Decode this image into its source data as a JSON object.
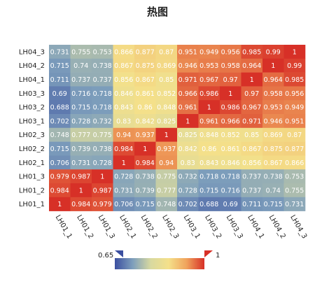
{
  "chart_data": {
    "type": "heatmap",
    "title": "热图",
    "rows": [
      "LH04_3",
      "LH04_2",
      "LH04_1",
      "LH03_3",
      "LH03_2",
      "LH03_1",
      "LH02_3",
      "LH02_2",
      "LH02_1",
      "LH01_3",
      "LH01_2",
      "LH01_1"
    ],
    "cols": [
      "LH01_1",
      "LH01_2",
      "LH01_3",
      "LH02_1",
      "LH02_2",
      "LH02_3",
      "LH03_1",
      "LH03_2",
      "LH03_3",
      "LH04_1",
      "LH04_2",
      "LH04_3"
    ],
    "values": [
      [
        0.731,
        0.755,
        0.753,
        0.866,
        0.877,
        0.87,
        0.951,
        0.949,
        0.956,
        0.985,
        0.99,
        1
      ],
      [
        0.715,
        0.74,
        0.738,
        0.867,
        0.875,
        0.869,
        0.946,
        0.953,
        0.958,
        0.964,
        1,
        0.99
      ],
      [
        0.711,
        0.737,
        0.737,
        0.856,
        0.867,
        0.85,
        0.971,
        0.967,
        0.97,
        1,
        0.964,
        0.985
      ],
      [
        0.69,
        0.716,
        0.718,
        0.846,
        0.861,
        0.852,
        0.966,
        0.986,
        1,
        0.97,
        0.958,
        0.956
      ],
      [
        0.688,
        0.715,
        0.718,
        0.843,
        0.86,
        0.848,
        0.961,
        1,
        0.986,
        0.967,
        0.953,
        0.949
      ],
      [
        0.702,
        0.728,
        0.732,
        0.83,
        0.842,
        0.825,
        1,
        0.961,
        0.966,
        0.971,
        0.946,
        0.951
      ],
      [
        0.748,
        0.777,
        0.775,
        0.94,
        0.937,
        1,
        0.825,
        0.848,
        0.852,
        0.85,
        0.869,
        0.87
      ],
      [
        0.715,
        0.739,
        0.738,
        0.984,
        1,
        0.937,
        0.842,
        0.86,
        0.861,
        0.867,
        0.875,
        0.877
      ],
      [
        0.706,
        0.731,
        0.728,
        1,
        0.984,
        0.94,
        0.83,
        0.843,
        0.846,
        0.856,
        0.867,
        0.866
      ],
      [
        0.979,
        0.987,
        1,
        0.728,
        0.738,
        0.775,
        0.732,
        0.718,
        0.718,
        0.737,
        0.738,
        0.753
      ],
      [
        0.984,
        1,
        0.987,
        0.731,
        0.739,
        0.777,
        0.728,
        0.715,
        0.716,
        0.737,
        0.74,
        0.755
      ],
      [
        1,
        0.984,
        0.979,
        0.706,
        0.715,
        0.748,
        0.702,
        0.688,
        0.69,
        0.711,
        0.715,
        0.731
      ]
    ],
    "color_scale": {
      "min": 0.65,
      "max": 1,
      "min_label": "0.65",
      "max_label": "1",
      "colors": [
        "#3b4fa0",
        "#7e9fbc",
        "#d8d9a0",
        "#f4e08a",
        "#f0a35c",
        "#d73027"
      ]
    }
  }
}
